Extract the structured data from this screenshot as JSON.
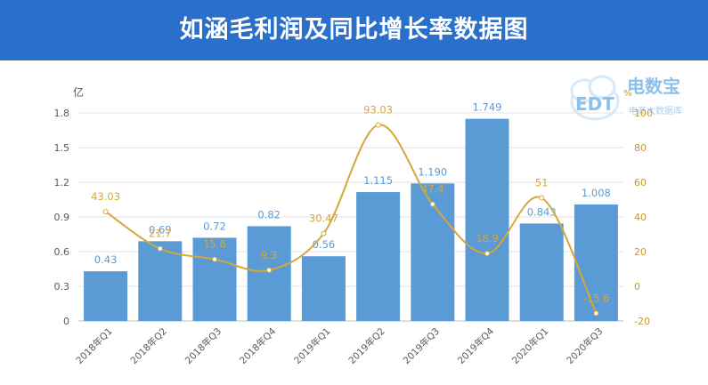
{
  "title": "如涵毛利润及同比增长率数据图",
  "logo": {
    "name": "电数宝",
    "sub": "EDT",
    "tagline": "电商大数据库"
  },
  "colors": {
    "banner": "#2a6fc9",
    "bar": "#5b9bd5",
    "line": "#d4a73a",
    "bar_label": "#5b9bd5",
    "line_label": "#d4a73a",
    "axis_text": "#595959",
    "right_axis_text": "#c59a2e"
  },
  "chart_data": {
    "type": "bar+line",
    "categories": [
      "2018年Q1",
      "2018年Q2",
      "2018年Q3",
      "2018年Q4",
      "2019年Q1",
      "2019年Q2",
      "2019年Q3",
      "2019年Q4",
      "2020年Q1",
      "2020年Q3"
    ],
    "series": [
      {
        "kind": "bar",
        "axis": "left",
        "values": [
          0.43,
          0.69,
          0.72,
          0.82,
          0.56,
          1.115,
          1.19,
          1.749,
          0.843,
          1.008
        ],
        "labels": [
          "0.43",
          "0.69",
          "0.72",
          "0.82",
          "0.56",
          "1.115",
          "1.190",
          "1.749",
          "0.843",
          "1.008"
        ]
      },
      {
        "kind": "line",
        "axis": "right",
        "smooth": true,
        "values": [
          43.03,
          21.7,
          15.6,
          9.3,
          30.47,
          93.03,
          47.4,
          18.9,
          51,
          -15.6
        ],
        "labels": [
          "43.03",
          "21.7",
          "15.6",
          "9.3",
          "30.47",
          "93.03",
          "47.4",
          "18.9",
          "51",
          "-15.6"
        ]
      }
    ],
    "y_left": {
      "unit": "亿",
      "min": 0,
      "max": 1.8,
      "ticks": [
        "0",
        "0.3",
        "0.6",
        "0.9",
        "1.2",
        "1.5",
        "1.8"
      ]
    },
    "y_right": {
      "unit": "%",
      "min": -20,
      "max": 100,
      "ticks": [
        "-20",
        "0",
        "20",
        "40",
        "60",
        "80",
        "100"
      ]
    },
    "grid": true,
    "legend": "none"
  }
}
